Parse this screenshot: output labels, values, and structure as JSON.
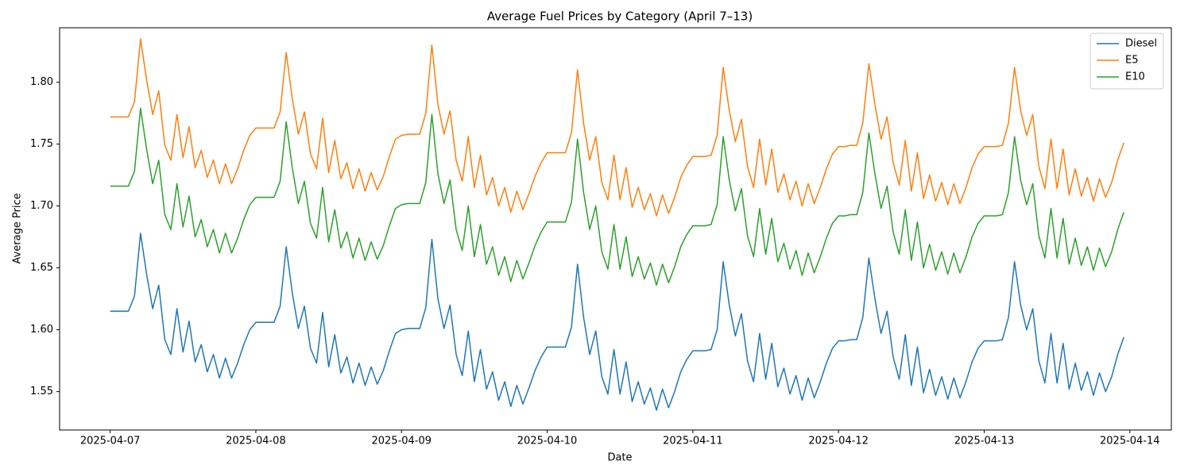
{
  "chart_data": {
    "type": "line",
    "title": "Average Fuel Prices by Category (April 7–13)",
    "xlabel": "Date",
    "ylabel": "Average Price",
    "x": [
      "2025-04-07T00:00",
      "2025-04-07T01:00",
      "2025-04-07T02:00",
      "2025-04-07T03:00",
      "2025-04-07T04:00",
      "2025-04-07T05:00",
      "2025-04-07T06:00",
      "2025-04-07T07:00",
      "2025-04-07T08:00",
      "2025-04-07T09:00",
      "2025-04-07T10:00",
      "2025-04-07T11:00",
      "2025-04-07T12:00",
      "2025-04-07T13:00",
      "2025-04-07T14:00",
      "2025-04-07T15:00",
      "2025-04-07T16:00",
      "2025-04-07T17:00",
      "2025-04-07T18:00",
      "2025-04-07T19:00",
      "2025-04-07T20:00",
      "2025-04-07T21:00",
      "2025-04-07T22:00",
      "2025-04-07T23:00",
      "2025-04-08T00:00",
      "2025-04-08T01:00",
      "2025-04-08T02:00",
      "2025-04-08T03:00",
      "2025-04-08T04:00",
      "2025-04-08T05:00",
      "2025-04-08T06:00",
      "2025-04-08T07:00",
      "2025-04-08T08:00",
      "2025-04-08T09:00",
      "2025-04-08T10:00",
      "2025-04-08T11:00",
      "2025-04-08T12:00",
      "2025-04-08T13:00",
      "2025-04-08T14:00",
      "2025-04-08T15:00",
      "2025-04-08T16:00",
      "2025-04-08T17:00",
      "2025-04-08T18:00",
      "2025-04-08T19:00",
      "2025-04-08T20:00",
      "2025-04-08T21:00",
      "2025-04-08T22:00",
      "2025-04-08T23:00",
      "2025-04-09T00:00",
      "2025-04-09T01:00",
      "2025-04-09T02:00",
      "2025-04-09T03:00",
      "2025-04-09T04:00",
      "2025-04-09T05:00",
      "2025-04-09T06:00",
      "2025-04-09T07:00",
      "2025-04-09T08:00",
      "2025-04-09T09:00",
      "2025-04-09T10:00",
      "2025-04-09T11:00",
      "2025-04-09T12:00",
      "2025-04-09T13:00",
      "2025-04-09T14:00",
      "2025-04-09T15:00",
      "2025-04-09T16:00",
      "2025-04-09T17:00",
      "2025-04-09T18:00",
      "2025-04-09T19:00",
      "2025-04-09T20:00",
      "2025-04-09T21:00",
      "2025-04-09T22:00",
      "2025-04-09T23:00",
      "2025-04-10T00:00",
      "2025-04-10T01:00",
      "2025-04-10T02:00",
      "2025-04-10T03:00",
      "2025-04-10T04:00",
      "2025-04-10T05:00",
      "2025-04-10T06:00",
      "2025-04-10T07:00",
      "2025-04-10T08:00",
      "2025-04-10T09:00",
      "2025-04-10T10:00",
      "2025-04-10T11:00",
      "2025-04-10T12:00",
      "2025-04-10T13:00",
      "2025-04-10T14:00",
      "2025-04-10T15:00",
      "2025-04-10T16:00",
      "2025-04-10T17:00",
      "2025-04-10T18:00",
      "2025-04-10T19:00",
      "2025-04-10T20:00",
      "2025-04-10T21:00",
      "2025-04-10T22:00",
      "2025-04-10T23:00",
      "2025-04-11T00:00",
      "2025-04-11T01:00",
      "2025-04-11T02:00",
      "2025-04-11T03:00",
      "2025-04-11T04:00",
      "2025-04-11T05:00",
      "2025-04-11T06:00",
      "2025-04-11T07:00",
      "2025-04-11T08:00",
      "2025-04-11T09:00",
      "2025-04-11T10:00",
      "2025-04-11T11:00",
      "2025-04-11T12:00",
      "2025-04-11T13:00",
      "2025-04-11T14:00",
      "2025-04-11T15:00",
      "2025-04-11T16:00",
      "2025-04-11T17:00",
      "2025-04-11T18:00",
      "2025-04-11T19:00",
      "2025-04-11T20:00",
      "2025-04-11T21:00",
      "2025-04-11T22:00",
      "2025-04-11T23:00",
      "2025-04-12T00:00",
      "2025-04-12T01:00",
      "2025-04-12T02:00",
      "2025-04-12T03:00",
      "2025-04-12T04:00",
      "2025-04-12T05:00",
      "2025-04-12T06:00",
      "2025-04-12T07:00",
      "2025-04-12T08:00",
      "2025-04-12T09:00",
      "2025-04-12T10:00",
      "2025-04-12T11:00",
      "2025-04-12T12:00",
      "2025-04-12T13:00",
      "2025-04-12T14:00",
      "2025-04-12T15:00",
      "2025-04-12T16:00",
      "2025-04-12T17:00",
      "2025-04-12T18:00",
      "2025-04-12T19:00",
      "2025-04-12T20:00",
      "2025-04-12T21:00",
      "2025-04-12T22:00",
      "2025-04-12T23:00",
      "2025-04-13T00:00",
      "2025-04-13T01:00",
      "2025-04-13T02:00",
      "2025-04-13T03:00",
      "2025-04-13T04:00",
      "2025-04-13T05:00",
      "2025-04-13T06:00",
      "2025-04-13T07:00",
      "2025-04-13T08:00",
      "2025-04-13T09:00",
      "2025-04-13T10:00",
      "2025-04-13T11:00",
      "2025-04-13T12:00",
      "2025-04-13T13:00",
      "2025-04-13T14:00",
      "2025-04-13T15:00",
      "2025-04-13T16:00",
      "2025-04-13T17:00",
      "2025-04-13T18:00",
      "2025-04-13T19:00",
      "2025-04-13T20:00",
      "2025-04-13T21:00",
      "2025-04-13T22:00",
      "2025-04-13T23:00"
    ],
    "series": [
      {
        "name": "Diesel",
        "color": "#1f77b4",
        "values": [
          1.615,
          1.615,
          1.615,
          1.615,
          1.627,
          1.678,
          1.645,
          1.617,
          1.636,
          1.592,
          1.58,
          1.617,
          1.582,
          1.607,
          1.574,
          1.588,
          1.566,
          1.58,
          1.561,
          1.577,
          1.561,
          1.573,
          1.588,
          1.6,
          1.606,
          1.606,
          1.606,
          1.606,
          1.619,
          1.667,
          1.63,
          1.601,
          1.619,
          1.585,
          1.573,
          1.614,
          1.57,
          1.596,
          1.565,
          1.578,
          1.557,
          1.573,
          1.555,
          1.57,
          1.556,
          1.567,
          1.583,
          1.597,
          1.6,
          1.601,
          1.601,
          1.601,
          1.618,
          1.673,
          1.625,
          1.601,
          1.62,
          1.58,
          1.563,
          1.599,
          1.558,
          1.584,
          1.552,
          1.566,
          1.543,
          1.558,
          1.538,
          1.555,
          1.54,
          1.553,
          1.567,
          1.578,
          1.586,
          1.586,
          1.586,
          1.586,
          1.602,
          1.653,
          1.61,
          1.58,
          1.599,
          1.562,
          1.548,
          1.584,
          1.548,
          1.574,
          1.542,
          1.558,
          1.54,
          1.553,
          1.535,
          1.552,
          1.537,
          1.55,
          1.566,
          1.576,
          1.583,
          1.583,
          1.583,
          1.584,
          1.6,
          1.655,
          1.62,
          1.595,
          1.613,
          1.575,
          1.558,
          1.597,
          1.56,
          1.589,
          1.554,
          1.569,
          1.548,
          1.563,
          1.543,
          1.561,
          1.545,
          1.558,
          1.573,
          1.585,
          1.591,
          1.591,
          1.592,
          1.592,
          1.61,
          1.658,
          1.625,
          1.597,
          1.615,
          1.578,
          1.56,
          1.596,
          1.555,
          1.586,
          1.549,
          1.568,
          1.547,
          1.562,
          1.544,
          1.561,
          1.545,
          1.558,
          1.574,
          1.585,
          1.591,
          1.591,
          1.591,
          1.592,
          1.61,
          1.655,
          1.62,
          1.6,
          1.617,
          1.575,
          1.557,
          1.597,
          1.557,
          1.589,
          1.552,
          1.573,
          1.551,
          1.566,
          1.547,
          1.565,
          1.55,
          1.562,
          1.58,
          1.594
        ]
      },
      {
        "name": "E5",
        "color": "#ff7f0e",
        "values": [
          1.772,
          1.772,
          1.772,
          1.772,
          1.784,
          1.835,
          1.802,
          1.774,
          1.793,
          1.749,
          1.737,
          1.774,
          1.739,
          1.764,
          1.731,
          1.745,
          1.723,
          1.737,
          1.718,
          1.734,
          1.718,
          1.73,
          1.745,
          1.757,
          1.763,
          1.763,
          1.763,
          1.763,
          1.776,
          1.824,
          1.787,
          1.758,
          1.776,
          1.742,
          1.73,
          1.771,
          1.727,
          1.753,
          1.722,
          1.735,
          1.714,
          1.73,
          1.712,
          1.727,
          1.713,
          1.724,
          1.74,
          1.754,
          1.757,
          1.758,
          1.758,
          1.758,
          1.775,
          1.83,
          1.782,
          1.758,
          1.777,
          1.737,
          1.72,
          1.756,
          1.715,
          1.741,
          1.709,
          1.723,
          1.7,
          1.715,
          1.695,
          1.712,
          1.697,
          1.71,
          1.724,
          1.735,
          1.743,
          1.743,
          1.743,
          1.743,
          1.759,
          1.81,
          1.767,
          1.737,
          1.756,
          1.719,
          1.705,
          1.741,
          1.705,
          1.731,
          1.699,
          1.715,
          1.697,
          1.71,
          1.692,
          1.709,
          1.694,
          1.707,
          1.723,
          1.733,
          1.74,
          1.74,
          1.74,
          1.741,
          1.757,
          1.812,
          1.777,
          1.752,
          1.77,
          1.732,
          1.715,
          1.754,
          1.717,
          1.746,
          1.711,
          1.726,
          1.705,
          1.72,
          1.7,
          1.718,
          1.702,
          1.715,
          1.73,
          1.742,
          1.748,
          1.748,
          1.749,
          1.749,
          1.767,
          1.815,
          1.782,
          1.754,
          1.772,
          1.735,
          1.717,
          1.753,
          1.712,
          1.743,
          1.706,
          1.725,
          1.704,
          1.719,
          1.701,
          1.718,
          1.702,
          1.715,
          1.731,
          1.742,
          1.748,
          1.748,
          1.748,
          1.749,
          1.767,
          1.812,
          1.777,
          1.757,
          1.774,
          1.732,
          1.714,
          1.754,
          1.714,
          1.746,
          1.709,
          1.73,
          1.708,
          1.723,
          1.704,
          1.722,
          1.707,
          1.719,
          1.737,
          1.751
        ]
      },
      {
        "name": "E10",
        "color": "#2ca02c",
        "values": [
          1.716,
          1.716,
          1.716,
          1.716,
          1.728,
          1.779,
          1.746,
          1.718,
          1.737,
          1.693,
          1.681,
          1.718,
          1.683,
          1.708,
          1.675,
          1.689,
          1.667,
          1.681,
          1.662,
          1.678,
          1.662,
          1.674,
          1.689,
          1.701,
          1.707,
          1.707,
          1.707,
          1.707,
          1.72,
          1.768,
          1.731,
          1.702,
          1.72,
          1.686,
          1.674,
          1.715,
          1.671,
          1.697,
          1.666,
          1.679,
          1.658,
          1.674,
          1.656,
          1.671,
          1.657,
          1.668,
          1.684,
          1.698,
          1.701,
          1.702,
          1.702,
          1.702,
          1.719,
          1.774,
          1.726,
          1.702,
          1.721,
          1.681,
          1.664,
          1.7,
          1.659,
          1.685,
          1.653,
          1.667,
          1.644,
          1.659,
          1.639,
          1.656,
          1.641,
          1.654,
          1.668,
          1.679,
          1.687,
          1.687,
          1.687,
          1.687,
          1.703,
          1.754,
          1.711,
          1.681,
          1.7,
          1.663,
          1.649,
          1.685,
          1.649,
          1.675,
          1.643,
          1.659,
          1.641,
          1.654,
          1.636,
          1.653,
          1.638,
          1.651,
          1.667,
          1.677,
          1.684,
          1.684,
          1.684,
          1.685,
          1.701,
          1.756,
          1.721,
          1.696,
          1.714,
          1.676,
          1.659,
          1.698,
          1.661,
          1.69,
          1.655,
          1.67,
          1.649,
          1.664,
          1.644,
          1.662,
          1.646,
          1.659,
          1.674,
          1.686,
          1.692,
          1.692,
          1.693,
          1.693,
          1.711,
          1.759,
          1.726,
          1.698,
          1.716,
          1.679,
          1.661,
          1.697,
          1.656,
          1.687,
          1.65,
          1.669,
          1.648,
          1.663,
          1.645,
          1.662,
          1.646,
          1.659,
          1.675,
          1.686,
          1.692,
          1.692,
          1.692,
          1.693,
          1.711,
          1.756,
          1.721,
          1.701,
          1.718,
          1.676,
          1.658,
          1.698,
          1.658,
          1.69,
          1.653,
          1.674,
          1.652,
          1.667,
          1.648,
          1.666,
          1.651,
          1.663,
          1.681,
          1.695
        ]
      }
    ],
    "xlim": [
      "2025-04-06T15:40",
      "2025-04-14T06:50"
    ],
    "xticks": [
      "2025-04-07",
      "2025-04-08",
      "2025-04-09",
      "2025-04-10",
      "2025-04-11",
      "2025-04-12",
      "2025-04-13",
      "2025-04-14"
    ],
    "ylim": [
      1.519,
      1.844
    ],
    "yticks": [
      1.55,
      {
        "value": 1.6,
        "label": "1.60"
      },
      1.65,
      {
        "value": 1.7,
        "label": "1.70"
      },
      1.75,
      {
        "value": 1.8,
        "label": "1.80"
      }
    ],
    "grid": false,
    "legend": "upper right"
  }
}
